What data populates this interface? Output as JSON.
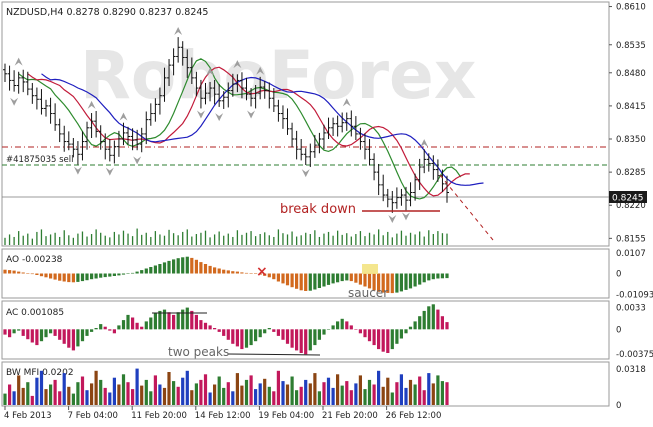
{
  "chart_data": [
    {
      "type": "ohlc",
      "title": "NZDUSD,H4  0.8278 0.8290 0.8237 0.8245",
      "ylim": [
        0.814,
        0.8615
      ],
      "yticks": [
        "0.8610",
        "0.8535",
        "0.8480",
        "0.8415",
        "0.8350",
        "0.8285",
        "0.8220",
        "0.8155"
      ],
      "current_price": "0.8245",
      "order_label": "#41875035 sell",
      "annotation": "break down",
      "watermark": "RoboForex",
      "close": [
        0.8478,
        0.8465,
        0.8455,
        0.847,
        0.8462,
        0.8448,
        0.8435,
        0.8428,
        0.841,
        0.8415,
        0.84,
        0.8378,
        0.836,
        0.8345,
        0.834,
        0.833,
        0.832,
        0.8345,
        0.8372,
        0.8385,
        0.8365,
        0.8345,
        0.833,
        0.8318,
        0.8335,
        0.835,
        0.8362,
        0.8355,
        0.8348,
        0.834,
        0.836,
        0.8388,
        0.84,
        0.8418,
        0.8435,
        0.847,
        0.8495,
        0.8512,
        0.853,
        0.851,
        0.849,
        0.847,
        0.845,
        0.843,
        0.844,
        0.845,
        0.8438,
        0.8425,
        0.8432,
        0.8445,
        0.8458,
        0.8465,
        0.845,
        0.8438,
        0.843,
        0.844,
        0.8452,
        0.8445,
        0.843,
        0.8415,
        0.84,
        0.839,
        0.837,
        0.835,
        0.833,
        0.832,
        0.8315,
        0.8325,
        0.8338,
        0.835,
        0.8362,
        0.8372,
        0.838,
        0.8375,
        0.8382,
        0.839,
        0.8375,
        0.836,
        0.8345,
        0.833,
        0.831,
        0.8285,
        0.826,
        0.824,
        0.8232,
        0.8225,
        0.8235,
        0.824,
        0.823,
        0.8245,
        0.827,
        0.8295,
        0.831,
        0.8302,
        0.829,
        0.8278,
        0.8262,
        0.8245
      ]
    },
    {
      "type": "histogram",
      "title": "AO -0.00238",
      "yticks": [
        "0.0107",
        "0",
        "-0.01093"
      ],
      "ylim": [
        -0.0118,
        0.0118
      ],
      "annotation": "saucer",
      "values": [
        0.002,
        0.0018,
        0.0015,
        0.001,
        0.0005,
        0.0002,
        -0.0003,
        -0.0008,
        -0.0014,
        -0.002,
        -0.0026,
        -0.0032,
        -0.0038,
        -0.0042,
        -0.0045,
        -0.0046,
        -0.0044,
        -0.004,
        -0.0035,
        -0.003,
        -0.0026,
        -0.0022,
        -0.0019,
        -0.0016,
        -0.0013,
        -0.001,
        -0.0006,
        -0.0002,
        0.0003,
        0.001,
        0.0018,
        0.0026,
        0.0034,
        0.0042,
        0.005,
        0.0058,
        0.0066,
        0.0074,
        0.008,
        0.0085,
        0.0088,
        0.0082,
        0.0072,
        0.006,
        0.005,
        0.004,
        0.0032,
        0.0026,
        0.002,
        0.0016,
        0.0012,
        0.001,
        0.0006,
        0.0003,
        0.0001,
        -0.0002,
        -0.0006,
        -0.0012,
        -0.002,
        -0.003,
        -0.0042,
        -0.0052,
        -0.0062,
        -0.0072,
        -0.008,
        -0.0088,
        -0.0092,
        -0.009,
        -0.0084,
        -0.0076,
        -0.0068,
        -0.006,
        -0.0052,
        -0.0046,
        -0.004,
        -0.0036,
        -0.004,
        -0.0048,
        -0.0058,
        -0.0068,
        -0.0078,
        -0.0088,
        -0.0096,
        -0.01,
        -0.0102,
        -0.0103,
        -0.01,
        -0.0094,
        -0.0086,
        -0.0078,
        -0.0068,
        -0.0058,
        -0.0046,
        -0.0036,
        -0.003,
        -0.0026,
        -0.0025,
        -0.0024
      ]
    },
    {
      "type": "histogram",
      "title": "AC 0.001085",
      "yticks": [
        "0.0033",
        "0",
        "-0.00375"
      ],
      "ylim": [
        -0.0042,
        0.004
      ],
      "annotation": "two peaks",
      "values": [
        -0.0008,
        -0.0012,
        -0.0006,
        -0.0002,
        -0.001,
        -0.0015,
        -0.002,
        -0.0024,
        -0.0018,
        -0.0012,
        -0.0006,
        -0.001,
        -0.0016,
        -0.0022,
        -0.0028,
        -0.0032,
        -0.0026,
        -0.0018,
        -0.001,
        -0.0004,
        0.0002,
        0.0008,
        0.0004,
        -0.0002,
        -0.0006,
        0.0006,
        0.0014,
        0.0022,
        0.0018,
        0.001,
        0.0004,
        0.0012,
        0.0018,
        0.0024,
        0.0028,
        0.003,
        0.0026,
        0.0022,
        0.0026,
        0.003,
        0.0033,
        0.0028,
        0.0022,
        0.0014,
        0.001,
        0.0006,
        0.0002,
        -0.0004,
        -0.001,
        -0.0016,
        -0.0022,
        -0.0026,
        -0.003,
        -0.0028,
        -0.0024,
        -0.0018,
        -0.0012,
        -0.0006,
        0.0002,
        -0.0004,
        -0.001,
        -0.0016,
        -0.0022,
        -0.0028,
        -0.0032,
        -0.0036,
        -0.0038,
        -0.0032,
        -0.0024,
        -0.0016,
        -0.0008,
        0.0,
        0.0006,
        0.0012,
        0.0016,
        0.0012,
        0.0006,
        0.0,
        -0.0006,
        -0.0012,
        -0.0018,
        -0.0024,
        -0.003,
        -0.0034,
        -0.0036,
        -0.003,
        -0.0022,
        -0.0014,
        -0.0006,
        0.0004,
        0.0012,
        0.002,
        0.0028,
        0.0035,
        0.0038,
        0.003,
        0.002,
        0.0011
      ]
    },
    {
      "type": "histogram",
      "title": "BW MFI 0.0202",
      "yticks": [
        "0.0318",
        "0"
      ],
      "ylim": [
        0,
        0.036
      ],
      "values": [
        0.01,
        0.018,
        0.012,
        0.026,
        0.015,
        0.02,
        0.008,
        0.024,
        0.03,
        0.014,
        0.018,
        0.022,
        0.012,
        0.028,
        0.016,
        0.01,
        0.02,
        0.025,
        0.013,
        0.019,
        0.03,
        0.022,
        0.015,
        0.011,
        0.024,
        0.018,
        0.027,
        0.02,
        0.014,
        0.032,
        0.017,
        0.022,
        0.012,
        0.026,
        0.018,
        0.015,
        0.029,
        0.021,
        0.016,
        0.024,
        0.03,
        0.013,
        0.019,
        0.022,
        0.027,
        0.011,
        0.018,
        0.025,
        0.015,
        0.02,
        0.012,
        0.028,
        0.017,
        0.022,
        0.026,
        0.014,
        0.019,
        0.023,
        0.016,
        0.012,
        0.03,
        0.021,
        0.018,
        0.025,
        0.013,
        0.016,
        0.022,
        0.019,
        0.028,
        0.012,
        0.02,
        0.024,
        0.015,
        0.027,
        0.017,
        0.021,
        0.013,
        0.019,
        0.026,
        0.014,
        0.022,
        0.018,
        0.03,
        0.016,
        0.024,
        0.011,
        0.02,
        0.027,
        0.015,
        0.022,
        0.018,
        0.025,
        0.013,
        0.028,
        0.019,
        0.026,
        0.021,
        0.02
      ]
    }
  ],
  "x_axis": {
    "labels": [
      "4 Feb 2013",
      "7 Feb 04:00",
      "11 Feb 20:00",
      "14 Feb 12:00",
      "19 Feb 04:00",
      "21 Feb 20:00",
      "26 Feb 12:00"
    ]
  },
  "colors": {
    "bull": "#2e7d32",
    "bear": "#c2185b",
    "ao_up": "#2e7d32",
    "ao_down": "#d2691e",
    "ma_fast": "#2e8b2e",
    "ma_mid": "#c21b3a",
    "ma_slow": "#1f1fbf",
    "order_line": "#2e7d32",
    "level_line": "#b22222",
    "annotation_red": "#b22222"
  }
}
